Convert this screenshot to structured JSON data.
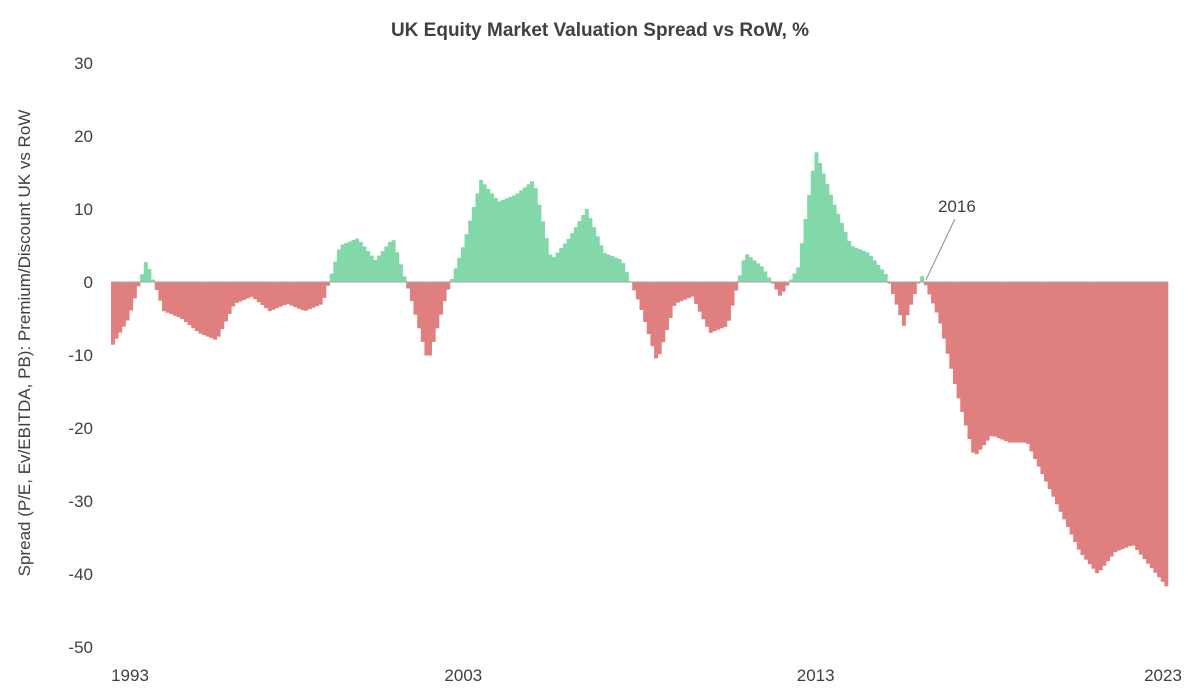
{
  "chart_data": {
    "type": "bar",
    "title": "UK Equity Market Valuation Spread vs RoW, %",
    "ylabel": "Spread (P/E, Ev/EBITDA, PB): Premium/Discount UK vs RoW",
    "xlabel": "",
    "ylim": [
      -50,
      30
    ],
    "yticks": [
      30,
      20,
      10,
      0,
      -10,
      -20,
      -30,
      -40,
      -50
    ],
    "ytick_labels": [
      "30",
      "20",
      "10",
      "0",
      "-10",
      "-20",
      "-30",
      "-40",
      "-50"
    ],
    "x_range": [
      1993.0,
      2023.0
    ],
    "xticks": [
      1993,
      2003,
      2013,
      2023
    ],
    "xtick_labels": [
      "1993",
      "2003",
      "2013",
      "2023"
    ],
    "grid": false,
    "colors": {
      "positive": "#82d8a8",
      "negative": "#df7f7f",
      "axis": "#a6a6a6",
      "text": "#404040"
    },
    "annotation": {
      "text": "2016",
      "x": 2016.1,
      "y": 0
    },
    "series": [
      {
        "x": [
          1993.0,
          1993.5,
          1994.0,
          1994.5,
          1995.0,
          1995.5,
          1996.0,
          1996.5,
          1997.0,
          1997.5,
          1998.0,
          1998.5,
          1999.0,
          1999.5,
          2000.0,
          2000.5,
          2001.0,
          2001.5,
          2002.0,
          2002.5,
          2003.0,
          2003.5,
          2004.0,
          2004.5,
          2005.0,
          2005.5,
          2006.0,
          2006.5,
          2007.0,
          2007.5,
          2008.0,
          2008.5,
          2009.0,
          2009.5,
          2010.0,
          2010.5,
          2011.0,
          2011.5,
          2012.0,
          2012.5,
          2013.0,
          2013.5,
          2014.0,
          2014.5,
          2015.0,
          2015.5,
          2016.0,
          2016.5,
          2017.0,
          2017.5,
          2018.0,
          2018.5,
          2019.0,
          2019.5,
          2020.0,
          2020.5,
          2021.0,
          2021.5,
          2022.0,
          2022.5,
          2023.0
        ],
        "y": [
          -9,
          -5,
          3,
          -4,
          -5,
          -7,
          -8,
          -3,
          -2,
          -4,
          -3,
          -4,
          -3,
          5,
          6,
          3,
          6,
          -2,
          -11,
          -2,
          5,
          14,
          11,
          12,
          14,
          3,
          6,
          10,
          4,
          3,
          -3,
          -11,
          -3,
          -2,
          -7,
          -6,
          4,
          2,
          -2,
          2,
          18,
          11,
          5,
          4,
          1,
          -6,
          1,
          -5,
          -15,
          -24,
          -21,
          -22,
          -22,
          -27,
          -32,
          -37,
          -40,
          -37,
          -36,
          -39,
          -42
        ]
      }
    ]
  }
}
